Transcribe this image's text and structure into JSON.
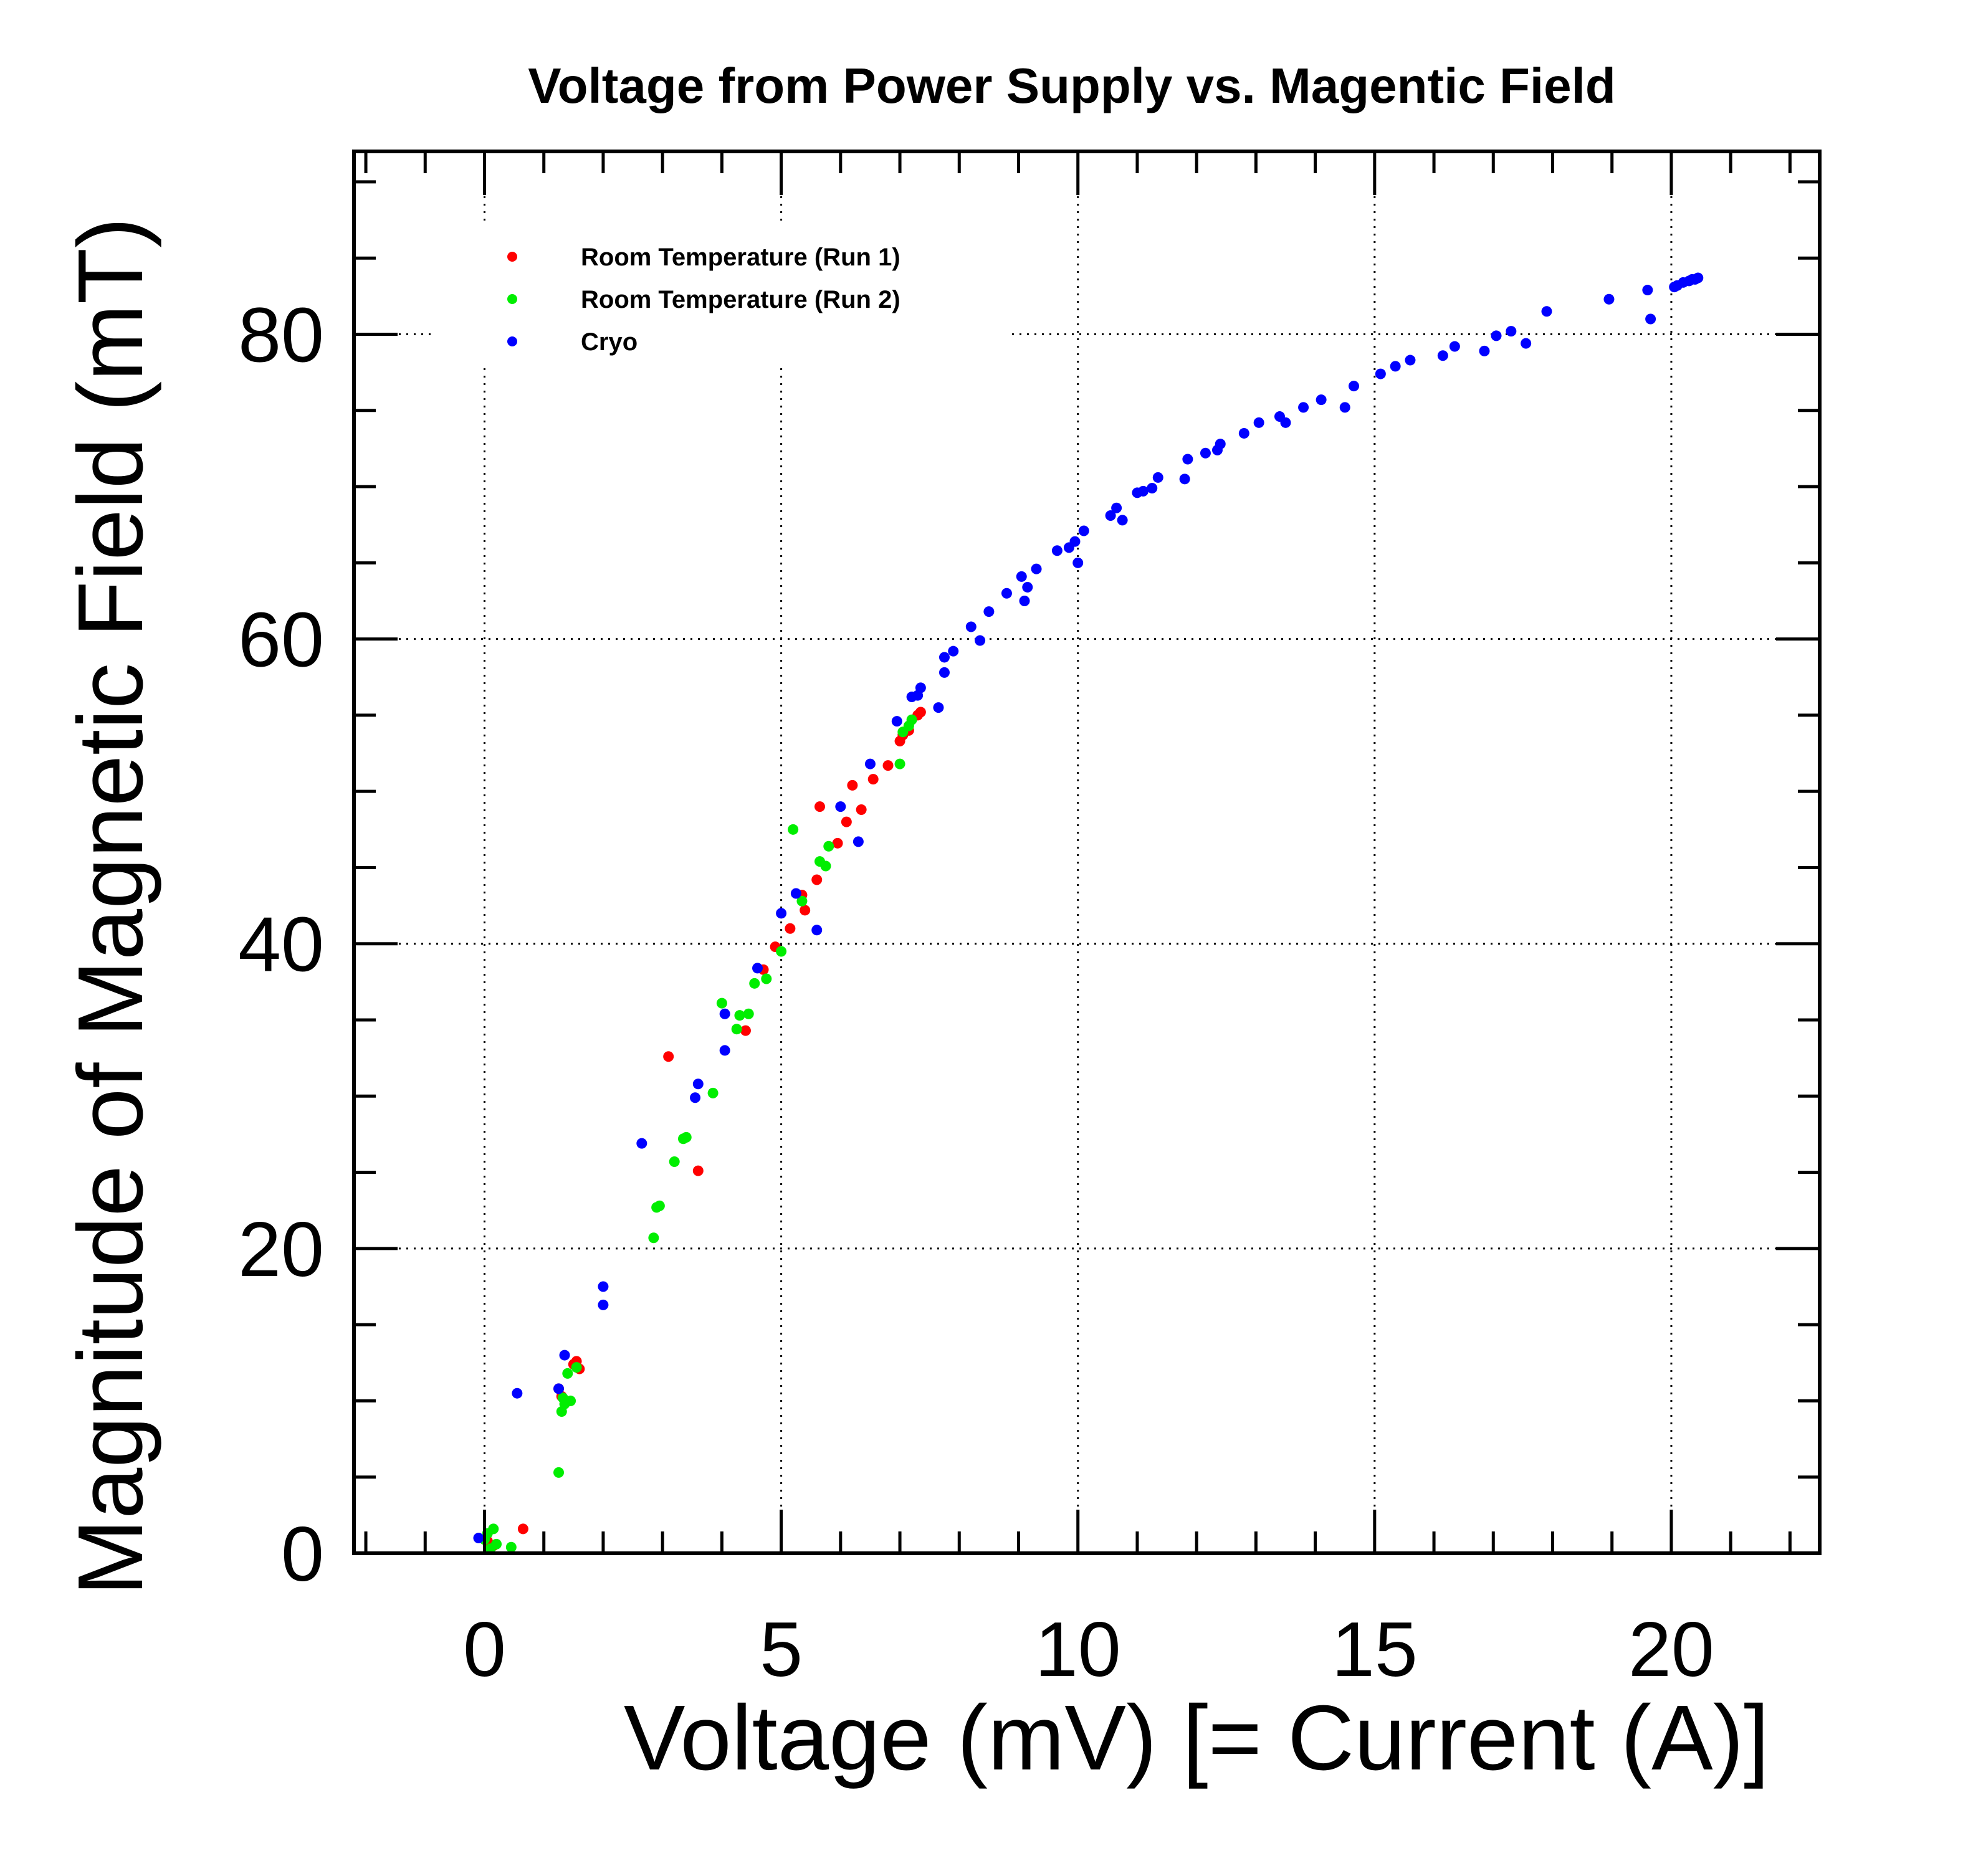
{
  "chart_data": {
    "type": "scatter",
    "title": "Voltage from Power Supply vs. Magentic Field",
    "xlabel": "Voltage (mV) [= Current (A)]",
    "ylabel": "Magnitude of Magnetic Field (mT)",
    "xlim": [
      -2.2,
      22.5
    ],
    "ylim": [
      0,
      92
    ],
    "xticks": [
      0,
      5,
      10,
      15,
      20
    ],
    "yticks": [
      0,
      20,
      40,
      60,
      80
    ],
    "grid": true,
    "legend_position": "top-left",
    "series": [
      {
        "name": "Room Temperature (Run 1)",
        "color": "#ff0000",
        "points": [
          [
            0.05,
            0.8
          ],
          [
            0.15,
            0.5
          ],
          [
            0.65,
            1.6
          ],
          [
            1.25,
            10.8
          ],
          [
            1.3,
            10.3
          ],
          [
            1.5,
            12.4
          ],
          [
            1.55,
            12.6
          ],
          [
            1.6,
            12.1
          ],
          [
            3.1,
            32.6
          ],
          [
            3.6,
            25.1
          ],
          [
            4.4,
            34.3
          ],
          [
            4.7,
            38.3
          ],
          [
            4.9,
            39.8
          ],
          [
            5.15,
            41.0
          ],
          [
            5.35,
            43.2
          ],
          [
            5.4,
            42.2
          ],
          [
            5.6,
            44.2
          ],
          [
            5.65,
            49.0
          ],
          [
            5.95,
            46.6
          ],
          [
            6.1,
            48.0
          ],
          [
            6.2,
            50.4
          ],
          [
            6.35,
            48.8
          ],
          [
            6.55,
            50.8
          ],
          [
            6.8,
            51.7
          ],
          [
            7.0,
            53.3
          ],
          [
            7.05,
            53.7
          ],
          [
            7.15,
            54.0
          ],
          [
            7.3,
            55.0
          ],
          [
            7.35,
            55.2
          ]
        ]
      },
      {
        "name": "Room Temperature (Run 2)",
        "color": "#00ee00",
        "points": [
          [
            0.0,
            0.9
          ],
          [
            0.05,
            1.3
          ],
          [
            0.1,
            0.3
          ],
          [
            0.15,
            1.6
          ],
          [
            0.2,
            0.6
          ],
          [
            0.45,
            0.4
          ],
          [
            1.25,
            5.3
          ],
          [
            1.3,
            9.3
          ],
          [
            1.32,
            10.2
          ],
          [
            1.35,
            9.8
          ],
          [
            1.4,
            11.8
          ],
          [
            1.45,
            10.0
          ],
          [
            1.55,
            12.2
          ],
          [
            2.85,
            20.7
          ],
          [
            2.9,
            22.7
          ],
          [
            2.95,
            22.8
          ],
          [
            3.2,
            25.7
          ],
          [
            3.35,
            27.2
          ],
          [
            3.4,
            27.3
          ],
          [
            3.85,
            30.2
          ],
          [
            4.0,
            36.1
          ],
          [
            4.25,
            34.4
          ],
          [
            4.3,
            35.3
          ],
          [
            4.45,
            35.4
          ],
          [
            4.55,
            37.4
          ],
          [
            4.75,
            37.7
          ],
          [
            5.0,
            39.5
          ],
          [
            5.2,
            47.5
          ],
          [
            5.35,
            42.8
          ],
          [
            5.65,
            45.4
          ],
          [
            5.75,
            45.1
          ],
          [
            5.8,
            46.4
          ],
          [
            7.0,
            51.8
          ],
          [
            7.05,
            53.9
          ],
          [
            7.15,
            54.3
          ],
          [
            7.2,
            54.7
          ]
        ]
      },
      {
        "name": "Cryo",
        "color": "#0000ff",
        "points": [
          [
            -0.1,
            1.0
          ],
          [
            0.55,
            10.5
          ],
          [
            1.25,
            10.8
          ],
          [
            1.35,
            13.0
          ],
          [
            2.0,
            16.3
          ],
          [
            2.0,
            17.5
          ],
          [
            2.65,
            26.9
          ],
          [
            3.55,
            29.9
          ],
          [
            3.6,
            30.8
          ],
          [
            4.05,
            33.0
          ],
          [
            4.05,
            35.4
          ],
          [
            4.6,
            38.4
          ],
          [
            5.0,
            42.0
          ],
          [
            5.25,
            43.3
          ],
          [
            5.6,
            40.9
          ],
          [
            6.0,
            49.0
          ],
          [
            6.3,
            46.7
          ],
          [
            6.5,
            51.8
          ],
          [
            6.95,
            54.6
          ],
          [
            7.2,
            56.2
          ],
          [
            7.35,
            56.8
          ],
          [
            7.3,
            56.3
          ],
          [
            7.65,
            55.5
          ],
          [
            7.75,
            57.8
          ],
          [
            7.75,
            58.8
          ],
          [
            7.9,
            59.2
          ],
          [
            8.2,
            60.8
          ],
          [
            8.35,
            59.9
          ],
          [
            8.5,
            61.8
          ],
          [
            8.8,
            63.0
          ],
          [
            9.05,
            64.1
          ],
          [
            9.1,
            62.5
          ],
          [
            9.15,
            63.4
          ],
          [
            9.3,
            64.6
          ],
          [
            9.65,
            65.8
          ],
          [
            9.85,
            66.0
          ],
          [
            9.95,
            66.4
          ],
          [
            10.0,
            65.0
          ],
          [
            10.1,
            67.1
          ],
          [
            10.55,
            68.1
          ],
          [
            10.65,
            68.6
          ],
          [
            10.75,
            67.8
          ],
          [
            11.0,
            69.6
          ],
          [
            11.1,
            69.7
          ],
          [
            11.25,
            69.9
          ],
          [
            11.35,
            70.6
          ],
          [
            11.8,
            70.5
          ],
          [
            11.85,
            71.8
          ],
          [
            12.15,
            72.2
          ],
          [
            12.35,
            72.4
          ],
          [
            12.4,
            72.8
          ],
          [
            12.8,
            73.5
          ],
          [
            13.05,
            74.2
          ],
          [
            13.4,
            74.6
          ],
          [
            13.5,
            74.2
          ],
          [
            13.8,
            75.2
          ],
          [
            14.1,
            75.7
          ],
          [
            14.5,
            75.2
          ],
          [
            14.65,
            76.6
          ],
          [
            15.1,
            77.4
          ],
          [
            15.35,
            77.9
          ],
          [
            15.6,
            78.3
          ],
          [
            16.15,
            78.6
          ],
          [
            16.35,
            79.2
          ],
          [
            16.85,
            78.9
          ],
          [
            17.05,
            79.9
          ],
          [
            17.3,
            80.2
          ],
          [
            17.55,
            79.4
          ],
          [
            17.9,
            81.5
          ],
          [
            18.95,
            82.3
          ],
          [
            19.6,
            82.9
          ],
          [
            19.65,
            81.0
          ],
          [
            20.05,
            83.1
          ],
          [
            20.1,
            83.2
          ],
          [
            20.2,
            83.4
          ],
          [
            20.3,
            83.5
          ],
          [
            20.35,
            83.6
          ],
          [
            20.4,
            83.6
          ],
          [
            20.45,
            83.7
          ]
        ]
      }
    ]
  }
}
